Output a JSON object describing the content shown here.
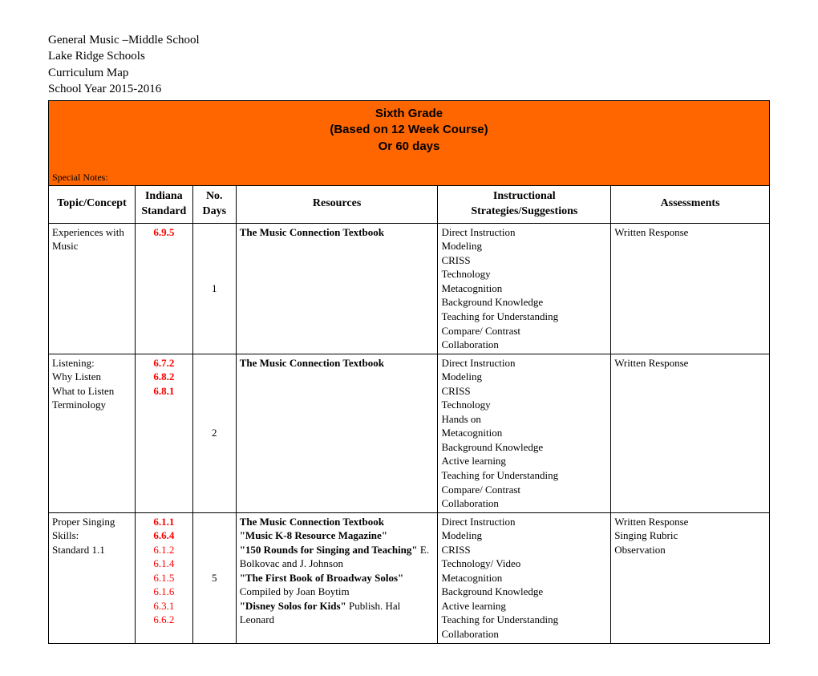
{
  "header": {
    "line1": "General Music –Middle School",
    "line2": "Lake Ridge Schools",
    "line3": "Curriculum Map",
    "line4": "School Year 2015-2016"
  },
  "title": {
    "l1": "Sixth Grade",
    "l2": "(Based on 12 Week Course)",
    "l3": "Or 60 days"
  },
  "special_notes_label": "Special Notes:",
  "columns": {
    "c1": "Topic/Concept",
    "c2a": "Indiana",
    "c2b": "Standard",
    "c3a": "No.",
    "c3b": "Days",
    "c4": "Resources",
    "c5a": "Instructional",
    "c5b": "Strategies/Suggestions",
    "c6": "Assessments"
  },
  "rows": [
    {
      "topic_lines": [
        "Experiences with",
        "Music"
      ],
      "standards": [
        "6.9.5"
      ],
      "days": "1",
      "resources_bold": [
        "The Music Connection Textbook"
      ],
      "resources_plain": [],
      "strategies": [
        "Direct Instruction",
        "Modeling",
        "CRISS",
        "Technology",
        "Metacognition",
        "Background Knowledge",
        "Teaching for Understanding",
        "Compare/ Contrast",
        "Collaboration"
      ],
      "assessments": [
        "Written Response"
      ]
    },
    {
      "topic_lines": [
        "Listening:",
        "Why Listen",
        "What to Listen",
        "Terminology"
      ],
      "standards": [
        "6.7.2",
        "6.8.2",
        "6.8.1"
      ],
      "days": "2",
      "resources_bold": [
        "The Music Connection Textbook"
      ],
      "resources_plain": [],
      "strategies": [
        "Direct Instruction",
        "Modeling",
        "CRISS",
        "Technology",
        "Hands on",
        "Metacognition",
        "Background Knowledge",
        "Active learning",
        "Teaching for Understanding",
        "Compare/ Contrast",
        "Collaboration"
      ],
      "assessments": [
        "Written Response"
      ]
    },
    {
      "topic_lines": [
        "Proper Singing",
        "Skills:",
        "Standard 1.1"
      ],
      "standards": [
        "6.1.1",
        "6.6.4",
        "6.1.2",
        "6.1.4",
        "6.1.5",
        "6.1.6",
        "6.3.1",
        "6.6.2"
      ],
      "bold_standards_count": 2,
      "days": "5",
      "resources_mixed": [
        {
          "b": "The Music Connection Textbook",
          "p": ""
        },
        {
          "b": "\"Music K-8 Resource Magazine\"",
          "p": ""
        },
        {
          "b": "\"150 Rounds for Singing and Teaching\"",
          "p": " E. Bolkovac and J. Johnson"
        },
        {
          "b": "\"The First Book of Broadway Solos\"",
          "p": " Compiled by Joan Boytim"
        },
        {
          "b": "\"Disney Solos for Kids\"",
          "p": " Publish. Hal Leonard"
        }
      ],
      "strategies": [
        "Direct Instruction",
        "Modeling",
        "CRISS",
        "Technology/ Video",
        "Metacognition",
        "Background Knowledge",
        "Active learning",
        "Teaching for Understanding",
        "Collaboration"
      ],
      "assessments": [
        "Written Response",
        "Singing Rubric",
        "Observation"
      ]
    }
  ]
}
